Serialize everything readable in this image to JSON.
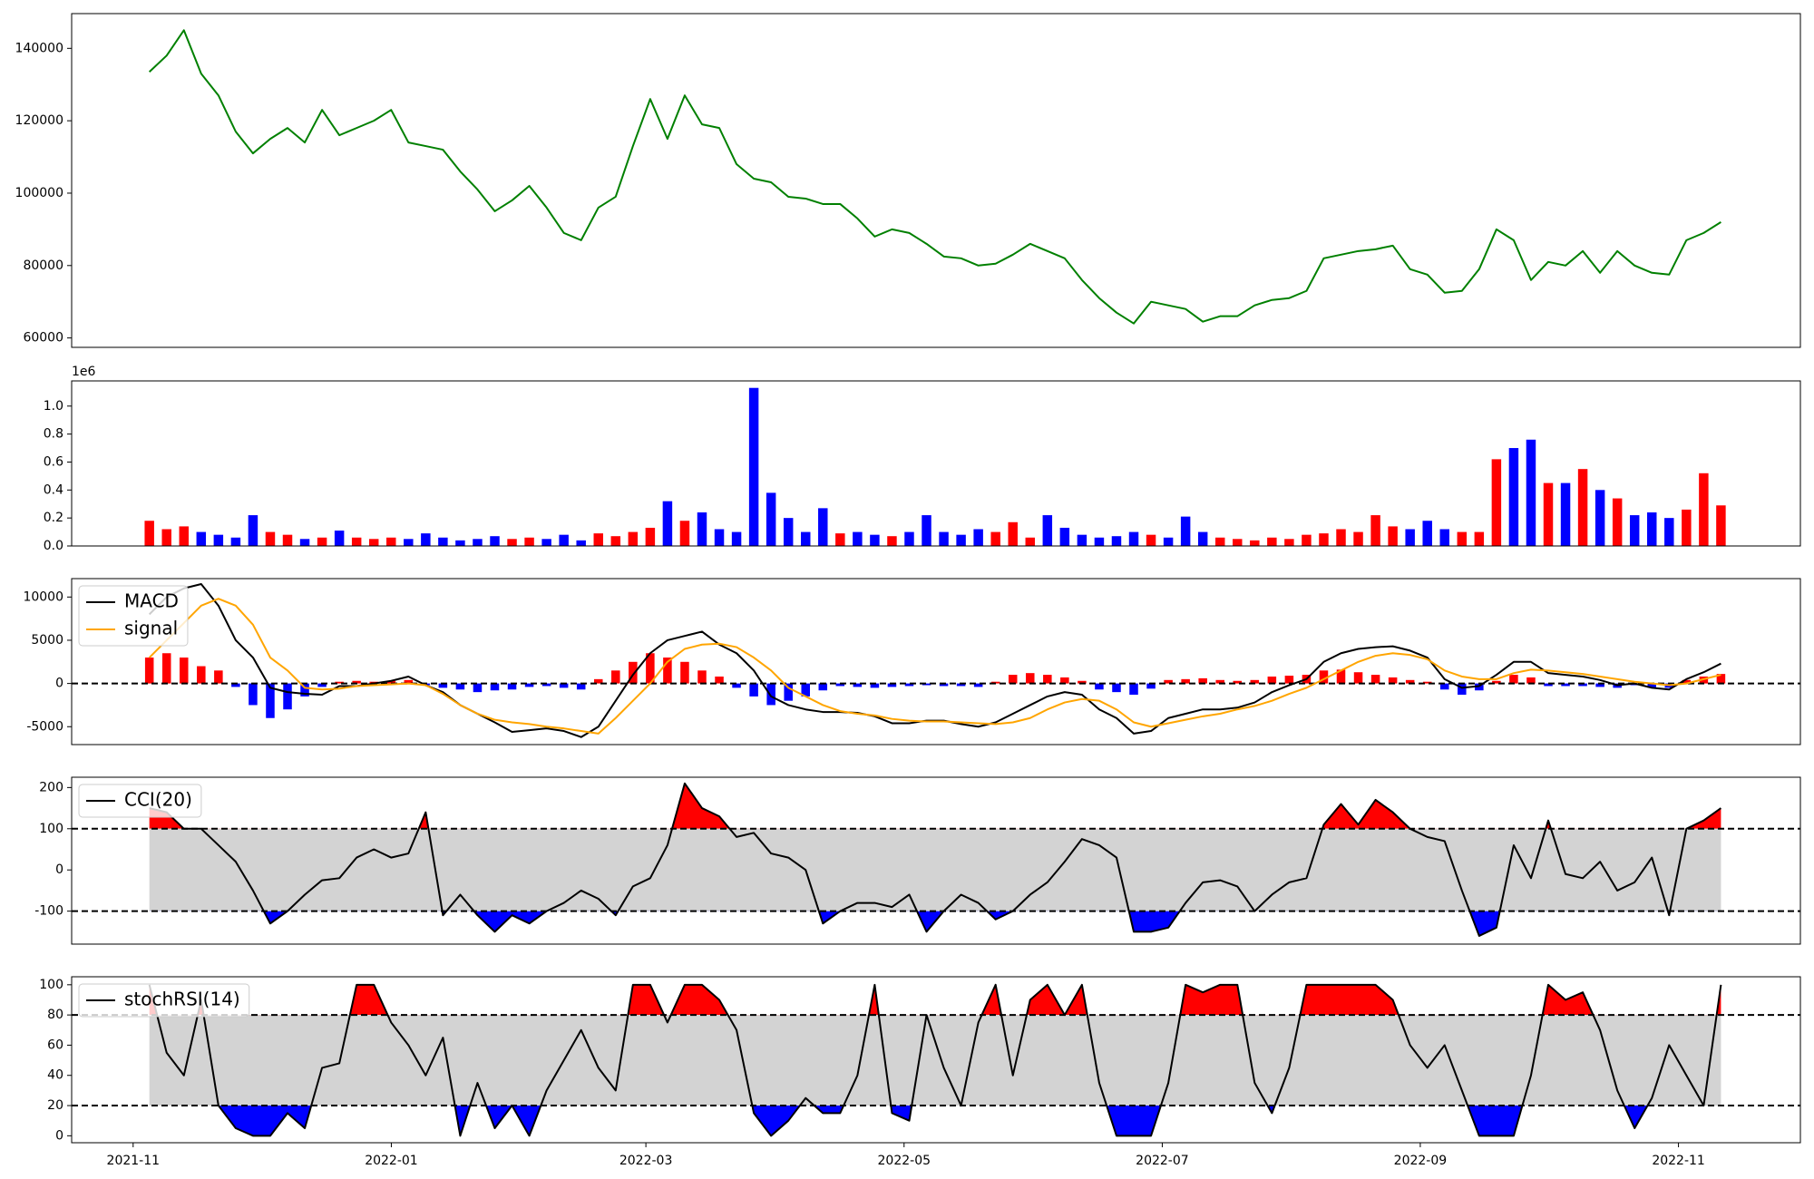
{
  "chart_data": [
    {
      "type": "line",
      "series": [
        {
          "color": "#008000",
          "values": [
            133500,
            138000,
            145000,
            133000,
            127000,
            117000,
            111000,
            115000,
            118000,
            114000,
            123000,
            116000,
            118000,
            120000,
            123000,
            114000,
            113000,
            112000,
            106000,
            101000,
            95000,
            98000,
            102000,
            96000,
            89000,
            87000,
            96000,
            99000,
            113000,
            126000,
            115000,
            127000,
            119000,
            118000,
            108000,
            104000,
            103000,
            99000,
            98500,
            97000,
            97000,
            93000,
            88000,
            90000,
            89000,
            86000,
            82500,
            82000,
            80000,
            80500,
            83000,
            86000,
            84000,
            82000,
            76000,
            71000,
            67000,
            64000,
            70000,
            69000,
            68000,
            64500,
            66000,
            66000,
            69000,
            70500,
            71000,
            73000,
            82000,
            83000,
            84000,
            84500,
            85500,
            79000,
            77500,
            72500,
            73000,
            79000,
            90000,
            87000,
            76000,
            81000,
            80000,
            84000,
            78000,
            84000,
            80000,
            78000,
            77500,
            87000,
            89000,
            92000
          ]
        }
      ],
      "ylim": [
        57400,
        149600
      ],
      "yticks": [
        60000,
        80000,
        100000,
        120000,
        140000
      ]
    },
    {
      "type": "bar",
      "offset_label": "1e6",
      "up_color": "red",
      "down_color": "blue",
      "values": [
        0.18,
        0.12,
        0.14,
        0.1,
        0.08,
        0.06,
        0.22,
        0.1,
        0.08,
        0.05,
        0.06,
        0.11,
        0.06,
        0.05,
        0.06,
        0.05,
        0.09,
        0.06,
        0.04,
        0.05,
        0.07,
        0.05,
        0.06,
        0.05,
        0.08,
        0.04,
        0.09,
        0.07,
        0.1,
        0.13,
        0.32,
        0.18,
        0.24,
        0.12,
        0.1,
        1.13,
        0.38,
        0.2,
        0.1,
        0.27,
        0.09,
        0.1,
        0.08,
        0.07,
        0.1,
        0.22,
        0.1,
        0.08,
        0.12,
        0.1,
        0.17,
        0.06,
        0.22,
        0.13,
        0.08,
        0.06,
        0.07,
        0.1,
        0.08,
        0.06,
        0.21,
        0.1,
        0.06,
        0.05,
        0.04,
        0.06,
        0.05,
        0.08,
        0.09,
        0.12,
        0.1,
        0.22,
        0.14,
        0.12,
        0.18,
        0.12,
        0.1,
        0.1,
        0.62,
        0.7,
        0.76,
        0.45,
        0.45,
        0.55,
        0.4,
        0.34,
        0.22,
        0.24,
        0.2,
        0.26,
        0.52,
        0.29
      ],
      "ylim": [
        0,
        1.18
      ],
      "yticks": [
        {
          "value": 0,
          "label": "0.0"
        },
        0.2,
        0.4,
        0.6,
        0.8,
        {
          "value": 1,
          "label": "1.0"
        }
      ]
    },
    {
      "type": "macd",
      "legend": "upper left",
      "hline": 0,
      "series": [
        {
          "name": "MACD",
          "color": "black",
          "values": [
            8000,
            10000,
            11000,
            11500,
            9000,
            5000,
            3000,
            -500,
            -1000,
            -1200,
            -1300,
            -300,
            -300,
            0,
            300,
            800,
            -200,
            -1000,
            -2500,
            -3500,
            -4500,
            -5600,
            -5400,
            -5200,
            -5500,
            -6200,
            -5000,
            -2000,
            1000,
            3500,
            5000,
            5500,
            6000,
            4500,
            3500,
            1500,
            -1500,
            -2500,
            -3000,
            -3300,
            -3300,
            -3400,
            -3800,
            -4600,
            -4600,
            -4300,
            -4300,
            -4700,
            -5000,
            -4500,
            -3500,
            -2500,
            -1500,
            -1000,
            -1300,
            -3000,
            -4000,
            -5800,
            -5500,
            -4000,
            -3500,
            -3000,
            -3000,
            -2800,
            -2200,
            -1000,
            -200,
            500,
            2500,
            3500,
            4000,
            4200,
            4300,
            3800,
            3000,
            500,
            -500,
            -300,
            1000,
            2500,
            2500,
            1200,
            1000,
            800,
            400,
            -200,
            0,
            -500,
            -700,
            500,
            1300,
            2300
          ]
        },
        {
          "name": "signal",
          "color": "orange",
          "values": [
            3000,
            5000,
            7000,
            9000,
            9800,
            9000,
            6800,
            3000,
            1500,
            -500,
            -700,
            -600,
            -300,
            -200,
            -100,
            0,
            -200,
            -1200,
            -2500,
            -3500,
            -4200,
            -4500,
            -4700,
            -5000,
            -5200,
            -5500,
            -5800,
            -4000,
            -2000,
            0,
            2500,
            4000,
            4500,
            4600,
            4200,
            3000,
            1500,
            -500,
            -1500,
            -2500,
            -3200,
            -3500,
            -3700,
            -4100,
            -4300,
            -4400,
            -4400,
            -4500,
            -4600,
            -4700,
            -4500,
            -4000,
            -3000,
            -2200,
            -1800,
            -2000,
            -3000,
            -4500,
            -5000,
            -4600,
            -4200,
            -3800,
            -3500,
            -3000,
            -2600,
            -2000,
            -1200,
            -500,
            500,
            1500,
            2500,
            3200,
            3500,
            3300,
            2800,
            1500,
            800,
            500,
            500,
            1200,
            1600,
            1500,
            1300,
            1100,
            800,
            500,
            200,
            0,
            -200,
            0,
            500,
            1000
          ]
        }
      ],
      "histogram": {
        "up_color": "red",
        "down_color": "blue",
        "values": [
          3000,
          3500,
          3000,
          2000,
          1500,
          -400,
          -2500,
          -4000,
          -3000,
          -1500,
          -400,
          200,
          300,
          200,
          300,
          400,
          -200,
          -500,
          -700,
          -1000,
          -800,
          -700,
          -400,
          -300,
          -500,
          -700,
          500,
          1500,
          2500,
          3500,
          3000,
          2500,
          1500,
          800,
          -500,
          -1500,
          -2500,
          -2000,
          -1500,
          -800,
          -300,
          -400,
          -500,
          -400,
          -300,
          -200,
          -300,
          -300,
          -400,
          200,
          1000,
          1200,
          1000,
          700,
          300,
          -700,
          -1000,
          -1300,
          -600,
          400,
          500,
          600,
          400,
          300,
          400,
          800,
          900,
          1000,
          1500,
          1600,
          1300,
          1000,
          700,
          400,
          200,
          -700,
          -1300,
          -800,
          300,
          1000,
          700,
          -300,
          -300,
          -300,
          -400,
          -500,
          -200,
          -500,
          -500,
          400,
          800,
          1100
        ]
      },
      "ylim": [
        -7070,
        12130
      ],
      "yticks": [
        -5000,
        0,
        5000,
        10000
      ]
    },
    {
      "type": "oscillator",
      "legend": "upper left",
      "levels": [
        -100,
        100
      ],
      "band_color": "lightgray",
      "above_color": "red",
      "below_color": "blue",
      "series": [
        {
          "name": "CCI(20)",
          "color": "black",
          "values": [
            150,
            140,
            100,
            100,
            60,
            20,
            -50,
            -130,
            -100,
            -60,
            -25,
            -20,
            30,
            50,
            30,
            40,
            140,
            -110,
            -60,
            -110,
            -150,
            -110,
            -130,
            -100,
            -80,
            -50,
            -70,
            -110,
            -40,
            -20,
            60,
            210,
            150,
            130,
            80,
            90,
            40,
            30,
            0,
            -130,
            -100,
            -80,
            -80,
            -90,
            -60,
            -150,
            -100,
            -60,
            -80,
            -120,
            -100,
            -60,
            -30,
            20,
            75,
            60,
            30,
            -150,
            -150,
            -140,
            -80,
            -30,
            -25,
            -40,
            -100,
            -60,
            -30,
            -20,
            110,
            160,
            110,
            170,
            140,
            100,
            80,
            70,
            -50,
            -160,
            -140,
            60,
            -20,
            120,
            -10,
            -20,
            20,
            -50,
            -30,
            30,
            -110,
            100,
            120,
            150
          ]
        }
      ],
      "ylim": [
        -180,
        225
      ],
      "yticks": [
        -100,
        0,
        100,
        200
      ]
    },
    {
      "type": "oscillator",
      "legend": "upper left",
      "levels": [
        20,
        80
      ],
      "band_color": "lightgray",
      "above_color": "red",
      "below_color": "blue",
      "series": [
        {
          "name": "stochRSI(14)",
          "color": "black",
          "values": [
            100,
            55,
            40,
            90,
            20,
            5,
            0,
            0,
            15,
            5,
            45,
            48,
            100,
            100,
            75,
            60,
            40,
            65,
            0,
            35,
            5,
            20,
            0,
            30,
            50,
            70,
            45,
            30,
            100,
            100,
            75,
            100,
            100,
            90,
            70,
            15,
            0,
            10,
            25,
            15,
            15,
            40,
            100,
            15,
            10,
            80,
            45,
            20,
            75,
            100,
            40,
            90,
            100,
            80,
            100,
            35,
            0,
            0,
            0,
            35,
            100,
            95,
            100,
            100,
            35,
            15,
            45,
            100,
            100,
            100,
            100,
            100,
            90,
            60,
            45,
            60,
            30,
            0,
            0,
            0,
            40,
            100,
            90,
            95,
            70,
            30,
            5,
            25,
            60,
            40,
            20,
            100
          ]
        }
      ],
      "ylim": [
        -4.6,
        105.3
      ],
      "yticks": [
        0,
        20,
        40,
        60,
        80,
        100
      ],
      "xlim": [
        -4.5,
        95.6
      ],
      "xticks": [
        {
          "value": -0.94,
          "label": "2021-11"
        },
        {
          "value": 14.01,
          "label": "2022-01"
        },
        {
          "value": 28.75,
          "label": "2022-03"
        },
        {
          "value": 43.7,
          "label": "2022-05"
        },
        {
          "value": 58.65,
          "label": "2022-07"
        },
        {
          "value": 73.59,
          "label": "2022-09"
        },
        {
          "value": 88.54,
          "label": "2022-11"
        }
      ]
    }
  ]
}
